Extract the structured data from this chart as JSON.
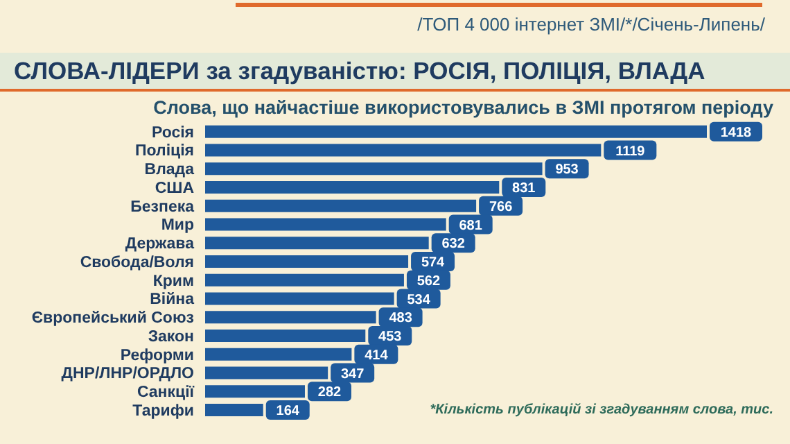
{
  "chart_data": {
    "type": "bar",
    "orientation": "horizontal",
    "title": "СЛОВА-ЛІДЕРИ за згадуваністю: РОСІЯ, ПОЛІЦІЯ, ВЛАДА",
    "subtitle": "Слова, що найчастіше використовувались в ЗМІ протягом періоду",
    "annotations": [
      "/ТОП 4 000 інтернет ЗМІ/*/Січень-Липень/",
      "*Кількість публікацій зі згадуванням слова, тис."
    ],
    "categories": [
      "Росія",
      "Поліція",
      "Влада",
      "США",
      "Безпека",
      "Мир",
      "Держава",
      "Свобода/Воля",
      "Крим",
      "Війна",
      "Європейський Союз",
      "Закон",
      "Реформи",
      "ДНР/ЛНР/ОРДЛО",
      "Санкції",
      "Тарифи"
    ],
    "values": [
      1418,
      1119,
      953,
      831,
      766,
      681,
      632,
      574,
      562,
      534,
      483,
      453,
      414,
      347,
      282,
      164
    ],
    "color": "#1f5a9c",
    "data_labels": true
  }
}
